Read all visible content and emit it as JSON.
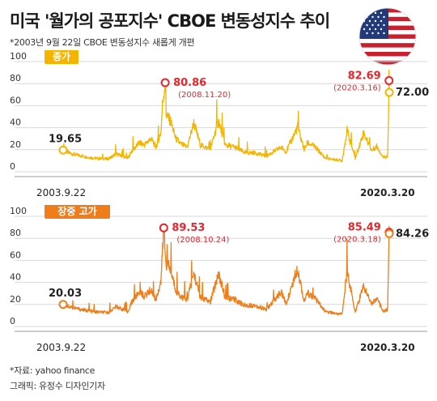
{
  "header": {
    "title": "미국 '월가의 공포지수' CBOE 변동성지수 추이",
    "subtitle": "*2003년 9월 22일 CBOE 변동성지수 새롭게 개편"
  },
  "footer": {
    "source": "*자료: yahoo finance",
    "credit": "그래픽: 유정수 디자인기자"
  },
  "colors": {
    "close": "#f4b400",
    "close_badge": "#f4b400",
    "high": "#ef7d1a",
    "high_badge": "#ef7d1a",
    "peak_marker": "#e8262c",
    "axis_text": "#333333",
    "gridline": "#d9d9d9"
  },
  "chart_data": [
    {
      "type": "line",
      "series_label": "종가",
      "ylim": [
        0,
        100
      ],
      "yticks": [
        0,
        20,
        40,
        60,
        80,
        100
      ],
      "x_start_label": "2003.9.22",
      "x_end_label": "2020.3.20",
      "annotations": [
        {
          "label": "19.65",
          "date": "2003.9.22",
          "value": 19.65
        },
        {
          "label": "80.86",
          "sublabel": "(2008.11.20)",
          "date": "2008.11.20",
          "value": 80.86,
          "peak": true
        },
        {
          "label": "82.69",
          "sublabel": "(2020.3.16)",
          "date": "2020.3.16",
          "value": 82.69,
          "peak": true
        },
        {
          "label": "72.00",
          "date": "2020.3.20",
          "value": 72.0
        }
      ],
      "series": [
        {
          "points": [
            [
              "2003.9.22",
              19.65
            ],
            [
              "2004.1",
              17
            ],
            [
              "2004.6",
              15
            ],
            [
              "2005.1",
              13
            ],
            [
              "2005.6",
              12
            ],
            [
              "2006.1",
              11.5
            ],
            [
              "2006.6",
              16
            ],
            [
              "2007.1",
              12
            ],
            [
              "2007.3",
              18
            ],
            [
              "2007.8",
              26
            ],
            [
              "2007.11",
              24
            ],
            [
              "2008.1",
              27
            ],
            [
              "2008.3",
              30
            ],
            [
              "2008.6",
              22
            ],
            [
              "2008.9",
              35
            ],
            [
              "2008.10",
              60
            ],
            [
              "2008.11.20",
              80.86
            ],
            [
              "2008.12",
              52
            ],
            [
              "2009.3",
              45
            ],
            [
              "2009.6",
              30
            ],
            [
              "2009.9",
              25
            ],
            [
              "2010.1",
              22
            ],
            [
              "2010.5",
              44
            ],
            [
              "2010.9",
              24
            ],
            [
              "2011.3",
              20
            ],
            [
              "2011.8",
              46
            ],
            [
              "2011.12",
              24
            ],
            [
              "2012.6",
              22
            ],
            [
              "2012.12",
              17
            ],
            [
              "2013.6",
              17
            ],
            [
              "2014.1",
              14
            ],
            [
              "2014.10",
              22
            ],
            [
              "2015.1",
              18
            ],
            [
              "2015.8",
              40
            ],
            [
              "2015.12",
              20
            ],
            [
              "2016.2",
              26
            ],
            [
              "2016.6",
              23
            ],
            [
              "2017.1",
              12
            ],
            [
              "2017.11",
              10
            ],
            [
              "2018.2",
              37
            ],
            [
              "2018.7",
              12
            ],
            [
              "2018.12",
              35
            ],
            [
              "2019.5",
              19
            ],
            [
              "2019.8",
              23
            ],
            [
              "2019.12",
              13
            ],
            [
              "2020.2.20",
              14
            ],
            [
              "2020.3.2",
              40
            ],
            [
              "2020.3.16",
              82.69
            ],
            [
              "2020.3.20",
              72.0
            ]
          ]
        }
      ]
    },
    {
      "type": "line",
      "series_label": "장중 고가",
      "ylim": [
        0,
        100
      ],
      "yticks": [
        0,
        20,
        40,
        60,
        80,
        100
      ],
      "x_start_label": "2003.9.22",
      "x_end_label": "2020.3.20",
      "annotations": [
        {
          "label": "20.03",
          "date": "2003.9.22",
          "value": 20.03
        },
        {
          "label": "89.53",
          "sublabel": "(2008.10.24)",
          "date": "2008.10.24",
          "value": 89.53,
          "peak": true
        },
        {
          "label": "85.49",
          "sublabel": "(2020.3.18)",
          "date": "2020.3.18",
          "value": 85.49,
          "peak": true
        },
        {
          "label": "84.26",
          "date": "2020.3.20",
          "value": 84.26
        }
      ],
      "series": [
        {
          "points": [
            [
              "2003.9.22",
              20.03
            ],
            [
              "2004.1",
              18
            ],
            [
              "2004.6",
              16
            ],
            [
              "2005.1",
              14
            ],
            [
              "2005.6",
              13
            ],
            [
              "2006.1",
              12.5
            ],
            [
              "2006.6",
              18
            ],
            [
              "2007.1",
              13
            ],
            [
              "2007.3",
              21
            ],
            [
              "2007.8",
              31
            ],
            [
              "2007.11",
              27
            ],
            [
              "2008.1",
              30
            ],
            [
              "2008.3",
              33
            ],
            [
              "2008.6",
              24
            ],
            [
              "2008.9",
              40
            ],
            [
              "2008.10.10",
              75
            ],
            [
              "2008.10.24",
              89.53
            ],
            [
              "2008.12",
              58
            ],
            [
              "2009.3",
              50
            ],
            [
              "2009.6",
              33
            ],
            [
              "2009.9",
              27
            ],
            [
              "2010.1",
              24
            ],
            [
              "2010.5",
              48
            ],
            [
              "2010.9",
              26
            ],
            [
              "2011.3",
              22
            ],
            [
              "2011.8",
              48
            ],
            [
              "2011.12",
              26
            ],
            [
              "2012.6",
              24
            ],
            [
              "2012.12",
              19
            ],
            [
              "2013.6",
              19
            ],
            [
              "2014.1",
              15
            ],
            [
              "2014.10",
              31
            ],
            [
              "2015.1",
              20
            ],
            [
              "2015.8",
              53
            ],
            [
              "2015.12",
              22
            ],
            [
              "2016.2",
              30
            ],
            [
              "2016.6",
              26
            ],
            [
              "2017.1",
              13
            ],
            [
              "2017.11",
              11
            ],
            [
              "2018.2",
              50
            ],
            [
              "2018.7",
              13
            ],
            [
              "2018.12",
              36
            ],
            [
              "2019.5",
              21
            ],
            [
              "2019.8",
              25
            ],
            [
              "2019.12",
              14
            ],
            [
              "2020.2.20",
              15
            ],
            [
              "2020.3.2",
              45
            ],
            [
              "2020.3.18",
              85.49
            ],
            [
              "2020.3.20",
              84.26
            ]
          ]
        }
      ]
    }
  ]
}
